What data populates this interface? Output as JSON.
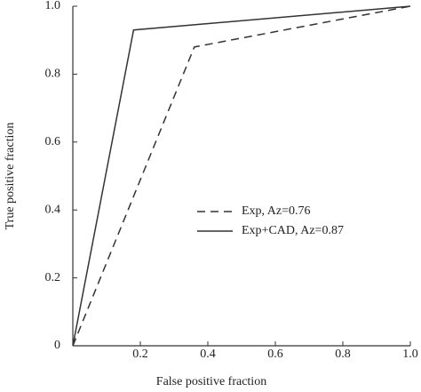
{
  "chart_data": {
    "type": "line",
    "x_label": "False positive fraction",
    "y_label": "True positive fraction",
    "xlim": [
      0,
      1
    ],
    "ylim": [
      0,
      1
    ],
    "xticks": [
      0.2,
      0.4,
      0.6,
      0.8,
      {
        "value": 1,
        "label": "1.0"
      }
    ],
    "yticks": [
      0,
      0.2,
      0.4,
      0.6,
      0.8,
      {
        "value": 1,
        "label": "1.0"
      }
    ],
    "series": [
      {
        "name": "Exp, Az=0.76",
        "color": "#333333",
        "line_style": "dashed",
        "x": [
          0,
          0.36,
          1
        ],
        "values": [
          0,
          0.88,
          1
        ]
      },
      {
        "name": "Exp+CAD, Az=0.87",
        "color": "#333333",
        "line_style": "solid",
        "x": [
          0,
          0.18,
          1
        ],
        "values": [
          0,
          0.93,
          1
        ]
      }
    ]
  }
}
